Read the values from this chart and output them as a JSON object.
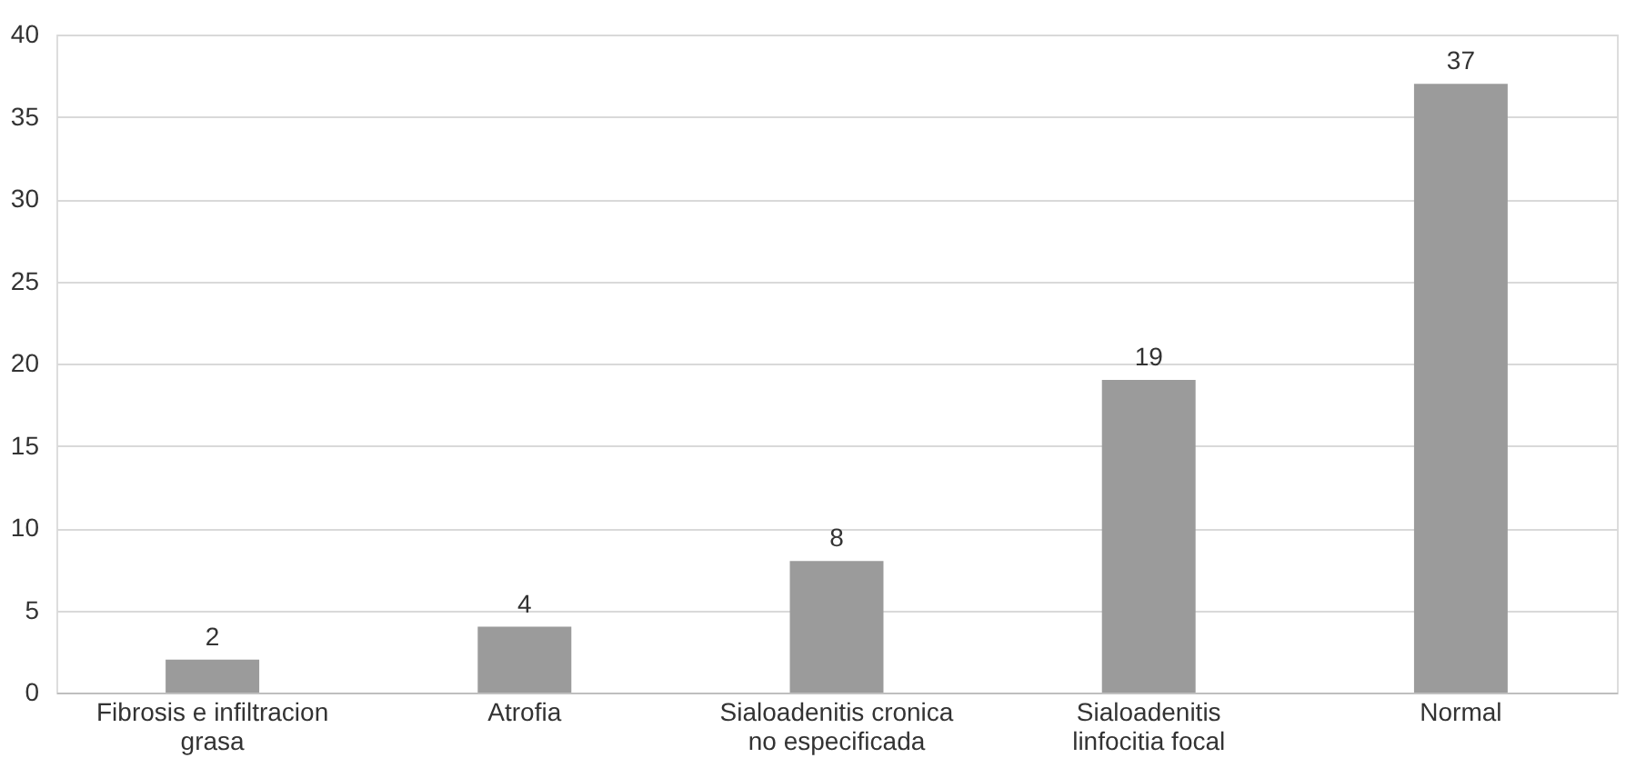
{
  "chart_data": {
    "type": "bar",
    "categories": [
      "Fibrosis e infiltracion grasa",
      "Atrofia",
      "Sialoadenitis cronica no especificada",
      "Sialoadenitis linfocitia focal",
      "Normal"
    ],
    "values": [
      2,
      4,
      8,
      19,
      37
    ],
    "color": "#9b9b9b",
    "ylim": [
      0,
      40
    ],
    "yticks": [
      0,
      5,
      10,
      15,
      20,
      25,
      30,
      35,
      40
    ],
    "grid": "y",
    "data_labels": true
  }
}
